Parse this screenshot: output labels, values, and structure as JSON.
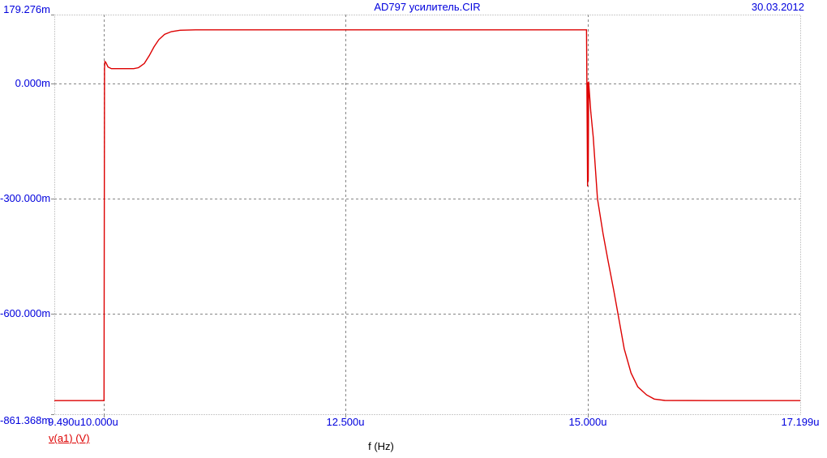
{
  "header": {
    "title": "AD797 усилитель.CIR",
    "date": "30.03.2012"
  },
  "colors": {
    "label_blue": "#0000dd",
    "trace_red": "#dd0000",
    "grid_gray": "#858585",
    "border_gray": "#9a9a9a",
    "axis_text_black": "#000000"
  },
  "chart_data": {
    "type": "line",
    "title": "AD797 усилитель.CIR",
    "xlabel": "f (Hz)",
    "ylabel": "",
    "x_unit_suffix": "u",
    "y_unit_suffix": "m",
    "xlim": [
      9.49,
      17.199
    ],
    "ylim": [
      -861.368,
      179.276
    ],
    "grid": true,
    "legend_position": "bottom-left",
    "xticks": [
      {
        "value": 9.49,
        "label": "9.490u"
      },
      {
        "value": 10.0,
        "label": "10.000u"
      },
      {
        "value": 12.5,
        "label": "12.500u"
      },
      {
        "value": 15.0,
        "label": "15.000u"
      },
      {
        "value": 17.199,
        "label": "17.199u"
      }
    ],
    "yticks": [
      {
        "value": 179.276,
        "label": "179.276m"
      },
      {
        "value": 0.0,
        "label": "0.000m"
      },
      {
        "value": -300.0,
        "label": "-300.000m"
      },
      {
        "value": -600.0,
        "label": "-600.000m"
      },
      {
        "value": -861.368,
        "label": "-861.368m"
      }
    ],
    "grid_x_values": [
      10.0,
      12.5,
      15.0
    ],
    "grid_y_values": [
      0.0,
      -300.0,
      -600.0
    ],
    "series": [
      {
        "name": "v(a1) (V)",
        "color": "#dd0000",
        "points": [
          [
            9.49,
            -826
          ],
          [
            10.004,
            -826
          ],
          [
            10.009,
            40
          ],
          [
            10.013,
            57
          ],
          [
            10.022,
            55
          ],
          [
            10.045,
            43
          ],
          [
            10.08,
            38.5
          ],
          [
            10.31,
            38.5
          ],
          [
            10.36,
            41
          ],
          [
            10.42,
            52
          ],
          [
            10.47,
            72
          ],
          [
            10.52,
            95
          ],
          [
            10.57,
            114
          ],
          [
            10.63,
            128
          ],
          [
            10.7,
            135
          ],
          [
            10.79,
            138.5
          ],
          [
            10.95,
            139.5
          ],
          [
            14.99,
            139.5
          ],
          [
            15.001,
            -268
          ],
          [
            15.005,
            3
          ],
          [
            15.008,
            -255
          ],
          [
            15.012,
            5
          ],
          [
            15.035,
            -75
          ],
          [
            15.06,
            -140
          ],
          [
            15.103,
            -300
          ],
          [
            15.16,
            -390
          ],
          [
            15.21,
            -458
          ],
          [
            15.27,
            -537
          ],
          [
            15.315,
            -600
          ],
          [
            15.38,
            -691
          ],
          [
            15.45,
            -754
          ],
          [
            15.52,
            -790
          ],
          [
            15.61,
            -811
          ],
          [
            15.69,
            -822
          ],
          [
            15.8,
            -825.5
          ],
          [
            16.3,
            -826
          ],
          [
            17.199,
            -826
          ]
        ]
      }
    ]
  }
}
